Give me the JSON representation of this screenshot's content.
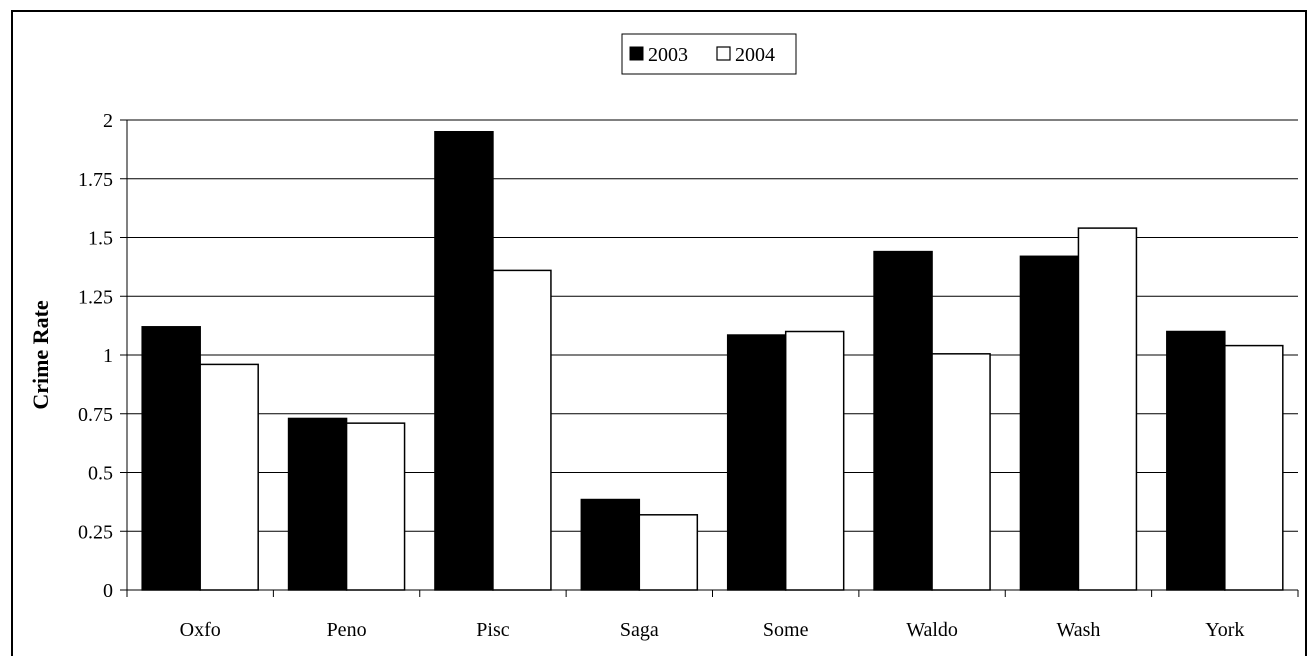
{
  "chart_data": {
    "type": "bar",
    "title": "",
    "xlabel": "",
    "ylabel": "Crime Rate",
    "categories": [
      "Oxfo",
      "Peno",
      "Pisc",
      "Saga",
      "Some",
      "Waldo",
      "Wash",
      "York"
    ],
    "series": [
      {
        "name": "2003",
        "color": "#000000",
        "values": [
          1.12,
          0.73,
          1.95,
          0.385,
          1.085,
          1.44,
          1.42,
          1.1
        ]
      },
      {
        "name": "2004",
        "color": "#ffffff",
        "values": [
          0.96,
          0.71,
          1.36,
          0.32,
          1.1,
          1.005,
          1.54,
          1.04
        ]
      }
    ],
    "ylim": [
      0,
      2
    ],
    "yticks": [
      "0",
      "0.25",
      "0.5",
      "0.75",
      "1",
      "1.25",
      "1.5",
      "1.75",
      "2"
    ],
    "grid": true,
    "legend": "top-center"
  }
}
